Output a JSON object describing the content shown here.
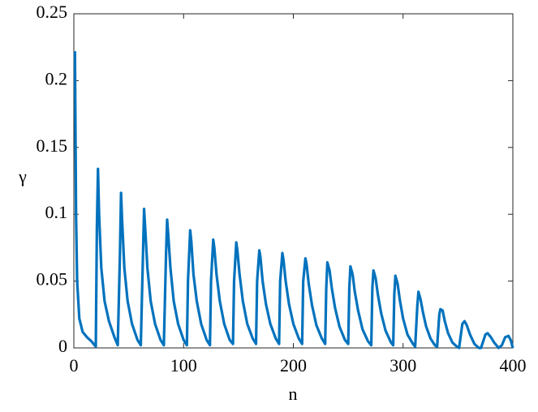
{
  "chart_data": {
    "type": "line",
    "xlabel": "n",
    "ylabel": "γ",
    "xlim": [
      0,
      400
    ],
    "xticks": [
      0,
      100,
      200,
      300,
      400
    ],
    "ylim": [
      0,
      0.25
    ],
    "yticks": [
      0,
      0.05,
      0.1,
      0.15,
      0.2,
      0.25
    ],
    "grid": false,
    "series": [
      {
        "color": "#0072bd",
        "x": [
          1,
          2,
          3,
          5,
          8,
          12,
          16,
          19,
          20,
          21,
          22,
          23,
          25,
          28,
          32,
          37,
          40,
          42,
          43,
          44,
          46,
          49,
          53,
          58,
          61,
          63,
          64,
          65,
          67,
          70,
          74,
          79,
          82,
          84,
          85,
          86,
          88,
          91,
          95,
          100,
          103,
          104,
          106,
          107,
          109,
          112,
          116,
          121,
          124,
          125,
          127,
          128,
          130,
          133,
          137,
          142,
          145,
          146,
          148,
          149,
          151,
          154,
          158,
          163,
          166,
          167,
          169,
          170,
          172,
          175,
          179,
          184,
          187,
          188,
          190,
          191,
          193,
          196,
          200,
          205,
          208,
          209,
          211,
          212,
          214,
          217,
          221,
          226,
          229,
          230,
          231,
          233,
          235,
          238,
          242,
          247,
          250,
          251,
          252,
          254,
          256,
          259,
          263,
          268,
          271,
          272,
          273,
          275,
          277,
          280,
          284,
          289,
          291,
          292,
          293,
          295,
          297,
          300,
          304,
          309,
          311,
          313,
          314,
          316,
          318,
          321,
          325,
          329,
          331,
          333,
          334,
          336,
          338,
          341,
          345,
          349,
          351,
          354,
          356,
          358,
          361,
          365,
          369,
          371,
          375,
          377,
          380,
          383,
          387,
          390,
          393,
          396,
          398,
          400
        ],
        "values": [
          0.222,
          0.1,
          0.05,
          0.022,
          0.012,
          0.008,
          0.005,
          0.002,
          0.001,
          0.09,
          0.134,
          0.1,
          0.06,
          0.035,
          0.02,
          0.008,
          0.002,
          0.07,
          0.116,
          0.095,
          0.06,
          0.035,
          0.018,
          0.006,
          0.002,
          0.07,
          0.104,
          0.09,
          0.06,
          0.035,
          0.018,
          0.006,
          0.002,
          0.07,
          0.096,
          0.085,
          0.06,
          0.035,
          0.018,
          0.006,
          0.002,
          0.05,
          0.088,
          0.08,
          0.055,
          0.035,
          0.018,
          0.006,
          0.002,
          0.05,
          0.081,
          0.075,
          0.055,
          0.035,
          0.018,
          0.006,
          0.003,
          0.05,
          0.079,
          0.073,
          0.055,
          0.035,
          0.018,
          0.007,
          0.003,
          0.05,
          0.073,
          0.068,
          0.05,
          0.033,
          0.018,
          0.007,
          0.003,
          0.05,
          0.071,
          0.066,
          0.05,
          0.033,
          0.018,
          0.007,
          0.003,
          0.05,
          0.067,
          0.063,
          0.048,
          0.032,
          0.017,
          0.007,
          0.003,
          0.045,
          0.064,
          0.058,
          0.045,
          0.03,
          0.016,
          0.006,
          0.003,
          0.045,
          0.061,
          0.055,
          0.042,
          0.028,
          0.014,
          0.005,
          0.002,
          0.045,
          0.058,
          0.052,
          0.04,
          0.026,
          0.013,
          0.004,
          0.002,
          0.04,
          0.054,
          0.048,
          0.036,
          0.022,
          0.01,
          0.003,
          0.001,
          0.032,
          0.042,
          0.036,
          0.027,
          0.016,
          0.007,
          0.002,
          0.001,
          0.025,
          0.029,
          0.028,
          0.02,
          0.011,
          0.004,
          0.001,
          0,
          0.018,
          0.02,
          0.017,
          0.01,
          0.003,
          0,
          0,
          0.01,
          0.011,
          0.008,
          0.004,
          0,
          0.002,
          0.008,
          0.009,
          0.006,
          0
        ]
      }
    ]
  }
}
